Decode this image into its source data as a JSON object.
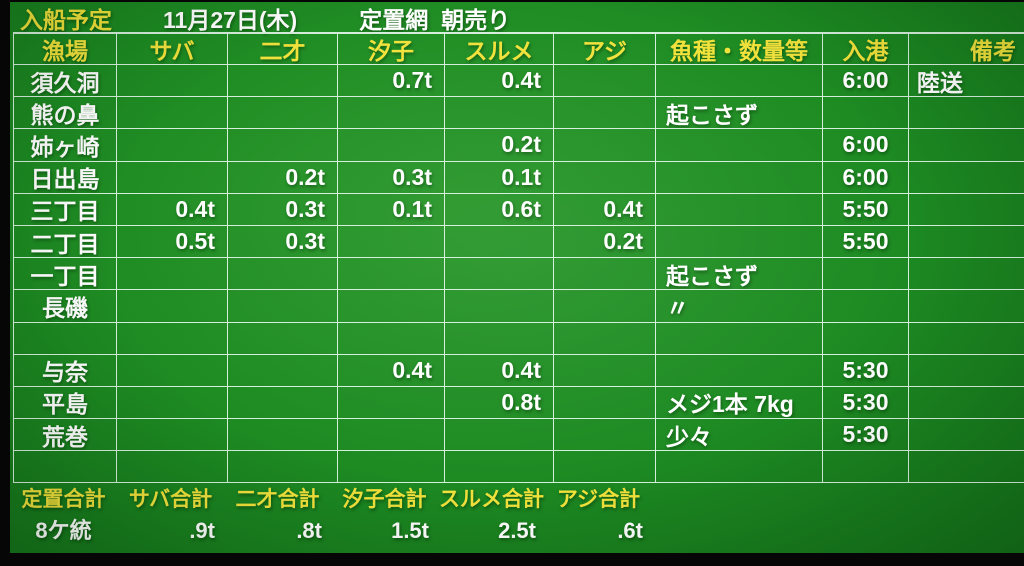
{
  "header": {
    "title": "入船予定",
    "date": "11月27日(木)",
    "net_type": "定置網",
    "sale": "朝売り"
  },
  "table": {
    "columns": [
      "漁場",
      "サバ",
      "二才",
      "汐子",
      "スルメ",
      "アジ",
      "魚種・数量等",
      "入港",
      "備考"
    ],
    "rows": [
      [
        "須久洞",
        "",
        "",
        "0.7t",
        "0.4t",
        "",
        "",
        "6:00",
        "陸送"
      ],
      [
        "熊の鼻",
        "",
        "",
        "",
        "",
        "",
        "起こさず",
        "",
        ""
      ],
      [
        "姉ヶ崎",
        "",
        "",
        "",
        "0.2t",
        "",
        "",
        "6:00",
        ""
      ],
      [
        "日出島",
        "",
        "0.2t",
        "0.3t",
        "0.1t",
        "",
        "",
        "6:00",
        ""
      ],
      [
        "三丁目",
        "0.4t",
        "0.3t",
        "0.1t",
        "0.6t",
        "0.4t",
        "",
        "5:50",
        ""
      ],
      [
        "二丁目",
        "0.5t",
        "0.3t",
        "",
        "",
        "0.2t",
        "",
        "5:50",
        ""
      ],
      [
        "一丁目",
        "",
        "",
        "",
        "",
        "",
        "起こさず",
        "",
        ""
      ],
      [
        "長磯",
        "",
        "",
        "",
        "",
        "",
        "〃",
        "",
        ""
      ],
      [
        "",
        "",
        "",
        "",
        "",
        "",
        "",
        "",
        ""
      ],
      [
        "与奈",
        "",
        "",
        "0.4t",
        "0.4t",
        "",
        "",
        "5:30",
        ""
      ],
      [
        "平島",
        "",
        "",
        "",
        "0.8t",
        "",
        "メジ1本  7kg",
        "5:30",
        ""
      ],
      [
        "荒巻",
        "",
        "",
        "",
        "",
        "",
        "少々",
        "5:30",
        ""
      ],
      [
        "",
        "",
        "",
        "",
        "",
        "",
        "",
        "",
        ""
      ]
    ]
  },
  "summary": {
    "labels": [
      "定置合計",
      "サバ合計",
      "二才合計",
      "汐子合計",
      "スルメ合計",
      "アジ合計"
    ],
    "values": [
      "8ケ統",
      ".9t",
      ".8t",
      "1.5t",
      "2.5t",
      ".6t"
    ]
  },
  "colors": {
    "background_green": "#1d8a22",
    "grid_line": "#d6efdc",
    "heading_text": "#f2e23c",
    "body_text": "#ffffff",
    "frame": "#060606"
  }
}
